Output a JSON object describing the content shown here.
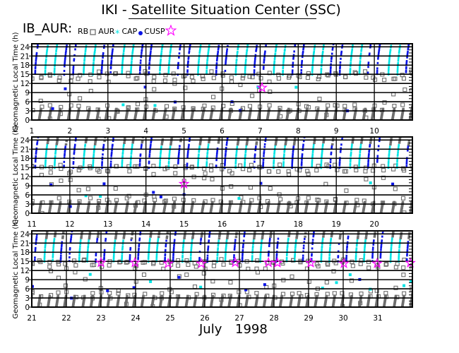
{
  "header": {
    "title": "IKI - Satellite Situation Center (SSC)",
    "dataset": "IB_AUR:"
  },
  "legend": [
    {
      "label": "RB",
      "marker": "square-outline",
      "color": "#6e6e6e"
    },
    {
      "label": "AUR",
      "marker": "asterisk",
      "color": "#00e5e5"
    },
    {
      "label": "CAP",
      "marker": "dot",
      "color": "#0a14e6"
    },
    {
      "label": "CUSP",
      "marker": "star-outline",
      "color": "#ff00ff"
    }
  ],
  "footer": {
    "month": "July",
    "year": "1998"
  },
  "chart_data": {
    "type": "scatter",
    "title": "IKI - Satellite Situation Center (SSC)",
    "ylabel": "Geomagnetic Local Time (h)",
    "xlabel": "July 1998",
    "ylim": [
      0,
      25
    ],
    "yticks": [
      "0",
      "3",
      "6",
      "9",
      "12",
      "15",
      "18",
      "21",
      "24"
    ],
    "grid": true,
    "legend_position": "top",
    "colors": {
      "RB": "#6e6e6e",
      "AUR": "#00e5e5",
      "CAP": "#0a14e6",
      "CUSP": "#ff00ff"
    },
    "panels": [
      {
        "xlim": [
          1,
          11
        ],
        "xticks": [
          "1",
          "2",
          "3",
          "4",
          "5",
          "6",
          "7",
          "8",
          "9",
          "10"
        ]
      },
      {
        "xlim": [
          11,
          21
        ],
        "xticks": [
          "11",
          "12",
          "13",
          "14",
          "15",
          "16",
          "17",
          "18",
          "19",
          "20"
        ]
      },
      {
        "xlim": [
          21,
          32
        ],
        "xticks": [
          "21",
          "22",
          "23",
          "24",
          "25",
          "26",
          "27",
          "28",
          "29",
          "30",
          "31"
        ]
      }
    ],
    "series": [
      {
        "name": "CUSP",
        "points": [
          {
            "day": 7.05,
            "glt": 10.6
          },
          {
            "day": 15.0,
            "glt": 9.6
          },
          {
            "day": 23.0,
            "glt": 14.6
          },
          {
            "day": 23.98,
            "glt": 14.6
          },
          {
            "day": 24.94,
            "glt": 14.3
          },
          {
            "day": 25.9,
            "glt": 14.3
          },
          {
            "day": 26.88,
            "glt": 14.6
          },
          {
            "day": 27.84,
            "glt": 14.6
          },
          {
            "day": 28.1,
            "glt": 14.5
          },
          {
            "day": 29.06,
            "glt": 14.5
          },
          {
            "day": 30.02,
            "glt": 14.3
          },
          {
            "day": 30.98,
            "glt": 14.3
          },
          {
            "day": 31.94,
            "glt": 14.5
          }
        ]
      }
    ]
  }
}
